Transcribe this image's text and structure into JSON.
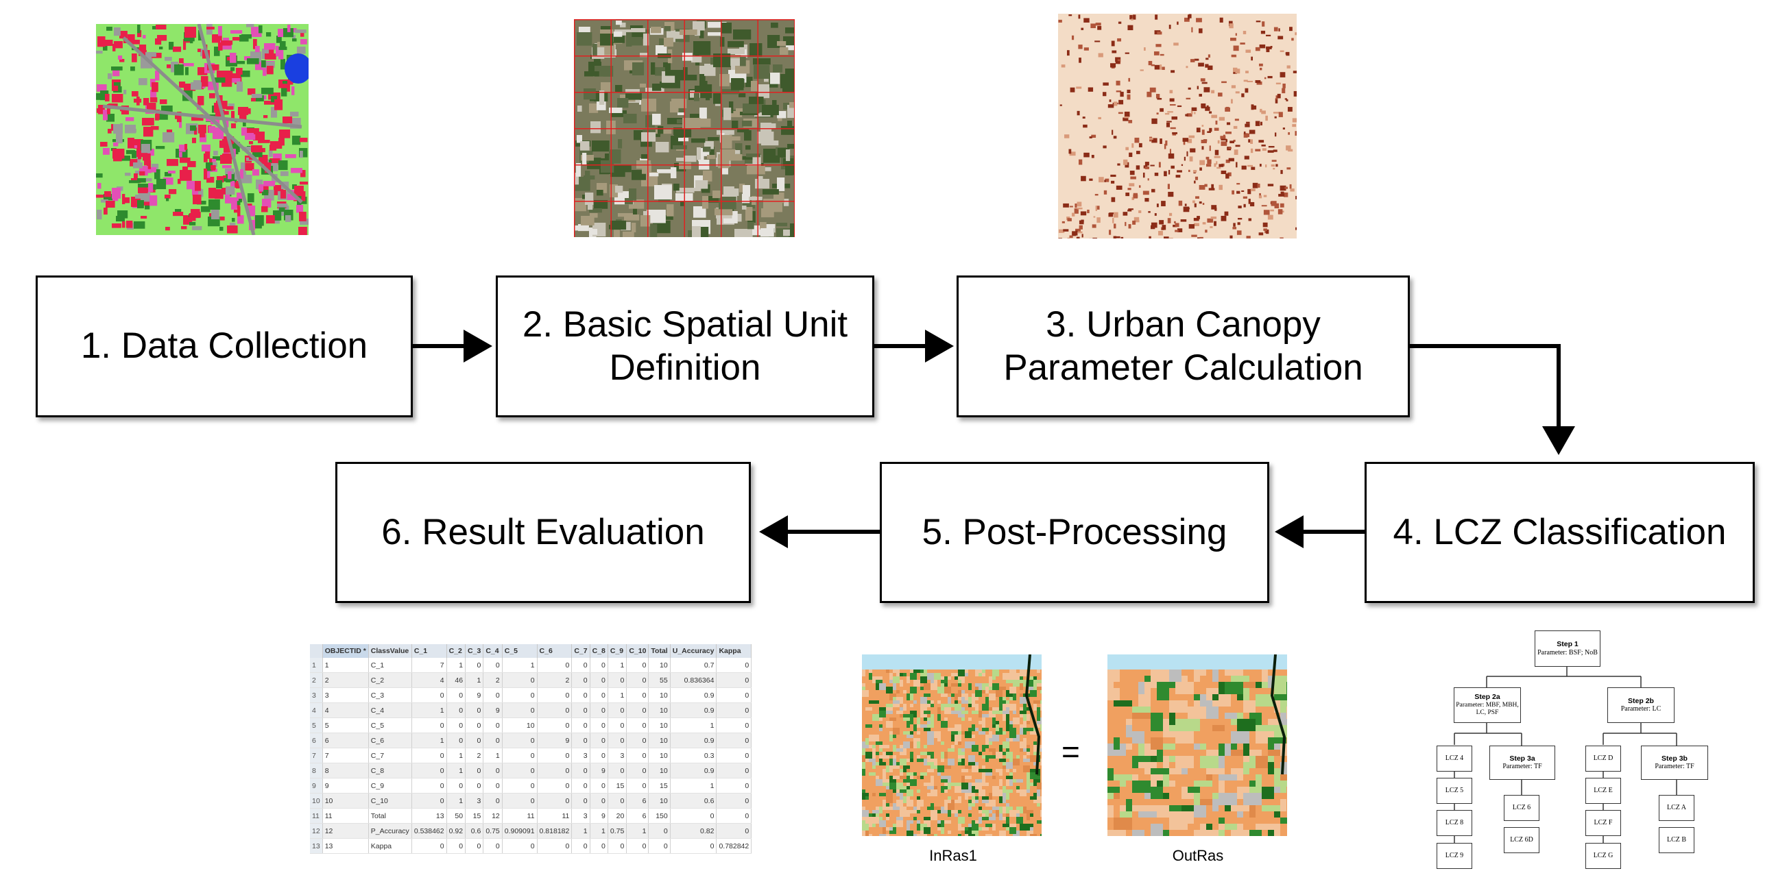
{
  "steps": [
    {
      "id": 1,
      "label": "1. Data Collection"
    },
    {
      "id": 2,
      "label": "2. Basic Spatial Unit\nDefinition"
    },
    {
      "id": 3,
      "label": "3. Urban Canopy\nParameter  Calculation"
    },
    {
      "id": 4,
      "label": "4. LCZ Classification"
    },
    {
      "id": 5,
      "label": "5. Post-Processing"
    },
    {
      "id": 6,
      "label": "6. Result Evaluation"
    }
  ],
  "post_processing": {
    "input_caption": "InRas1",
    "output_caption": "OutRas",
    "equals": "="
  },
  "evaluation_table": {
    "columns": [
      "",
      "OBJECTID *",
      "ClassValue",
      "C_1",
      "C_2",
      "C_3",
      "C_4",
      "C_5",
      "C_6",
      "C_7",
      "C_8",
      "C_9",
      "C_10",
      "Total",
      "U_Accuracy",
      "Kappa"
    ],
    "rows": [
      [
        "1",
        "1",
        "C_1",
        "7",
        "1",
        "0",
        "0",
        "1",
        "0",
        "0",
        "0",
        "1",
        "0",
        "10",
        "0.7",
        "0"
      ],
      [
        "2",
        "2",
        "C_2",
        "4",
        "46",
        "1",
        "2",
        "0",
        "2",
        "0",
        "0",
        "0",
        "0",
        "55",
        "0.836364",
        "0"
      ],
      [
        "3",
        "3",
        "C_3",
        "0",
        "0",
        "9",
        "0",
        "0",
        "0",
        "0",
        "0",
        "1",
        "0",
        "10",
        "0.9",
        "0"
      ],
      [
        "4",
        "4",
        "C_4",
        "1",
        "0",
        "0",
        "9",
        "0",
        "0",
        "0",
        "0",
        "0",
        "0",
        "10",
        "0.9",
        "0"
      ],
      [
        "5",
        "5",
        "C_5",
        "0",
        "0",
        "0",
        "0",
        "10",
        "0",
        "0",
        "0",
        "0",
        "0",
        "10",
        "1",
        "0"
      ],
      [
        "6",
        "6",
        "C_6",
        "1",
        "0",
        "0",
        "0",
        "0",
        "9",
        "0",
        "0",
        "0",
        "0",
        "10",
        "0.9",
        "0"
      ],
      [
        "7",
        "7",
        "C_7",
        "0",
        "1",
        "2",
        "1",
        "0",
        "0",
        "3",
        "0",
        "3",
        "0",
        "10",
        "0.3",
        "0"
      ],
      [
        "8",
        "8",
        "C_8",
        "0",
        "1",
        "0",
        "0",
        "0",
        "0",
        "0",
        "9",
        "0",
        "0",
        "10",
        "0.9",
        "0"
      ],
      [
        "9",
        "9",
        "C_9",
        "0",
        "0",
        "0",
        "0",
        "0",
        "0",
        "0",
        "0",
        "15",
        "0",
        "15",
        "1",
        "0"
      ],
      [
        "10",
        "10",
        "C_10",
        "0",
        "1",
        "3",
        "0",
        "0",
        "0",
        "0",
        "0",
        "0",
        "6",
        "10",
        "0.6",
        "0"
      ],
      [
        "11",
        "11",
        "Total",
        "13",
        "50",
        "15",
        "12",
        "11",
        "11",
        "3",
        "9",
        "20",
        "6",
        "150",
        "0",
        "0"
      ],
      [
        "12",
        "12",
        "P_Accuracy",
        "0.538462",
        "0.92",
        "0.6",
        "0.75",
        "0.909091",
        "0.818182",
        "1",
        "1",
        "0.75",
        "1",
        "0",
        "0.82",
        "0"
      ],
      [
        "13",
        "13",
        "Kappa",
        "0",
        "0",
        "0",
        "0",
        "0",
        "0",
        "0",
        "0",
        "0",
        "0",
        "0",
        "0",
        "0.782842"
      ]
    ]
  },
  "decision_tree": {
    "step1": {
      "title": "Step 1",
      "param": "Parameter: BSF; NoB"
    },
    "step2a": {
      "title": "Step 2a",
      "param": "Parameter: MBF, MBH,\nLC, PSF"
    },
    "step2b": {
      "title": "Step 2b",
      "param": "Parameter: LC"
    },
    "step3a": {
      "title": "Step 3a",
      "param": "Parameter: TF"
    },
    "step3b": {
      "title": "Step 3b",
      "param": "Parameter: TF"
    },
    "left_leaves": [
      "LCZ 4",
      "LCZ 5",
      "LCZ 8",
      "LCZ 9"
    ],
    "step3a_leaves": [
      "LCZ 6",
      "LCZ 6D"
    ],
    "right_leaves": [
      "LCZ D",
      "LCZ E",
      "LCZ F",
      "LCZ G"
    ],
    "step3b_leaves": [
      "LCZ A",
      "LCZ B"
    ]
  },
  "colors": {
    "landcover_green": "#8fe66a",
    "landcover_red": "#e8204a",
    "landcover_magenta": "#e34fb6",
    "grid_red": "#e02020",
    "canopy_brown": "#8b2c17",
    "canopy_bg": "#f3dcc6",
    "lcz_orange": "#f0a060",
    "lcz_darkgreen": "#1e6e1e"
  }
}
